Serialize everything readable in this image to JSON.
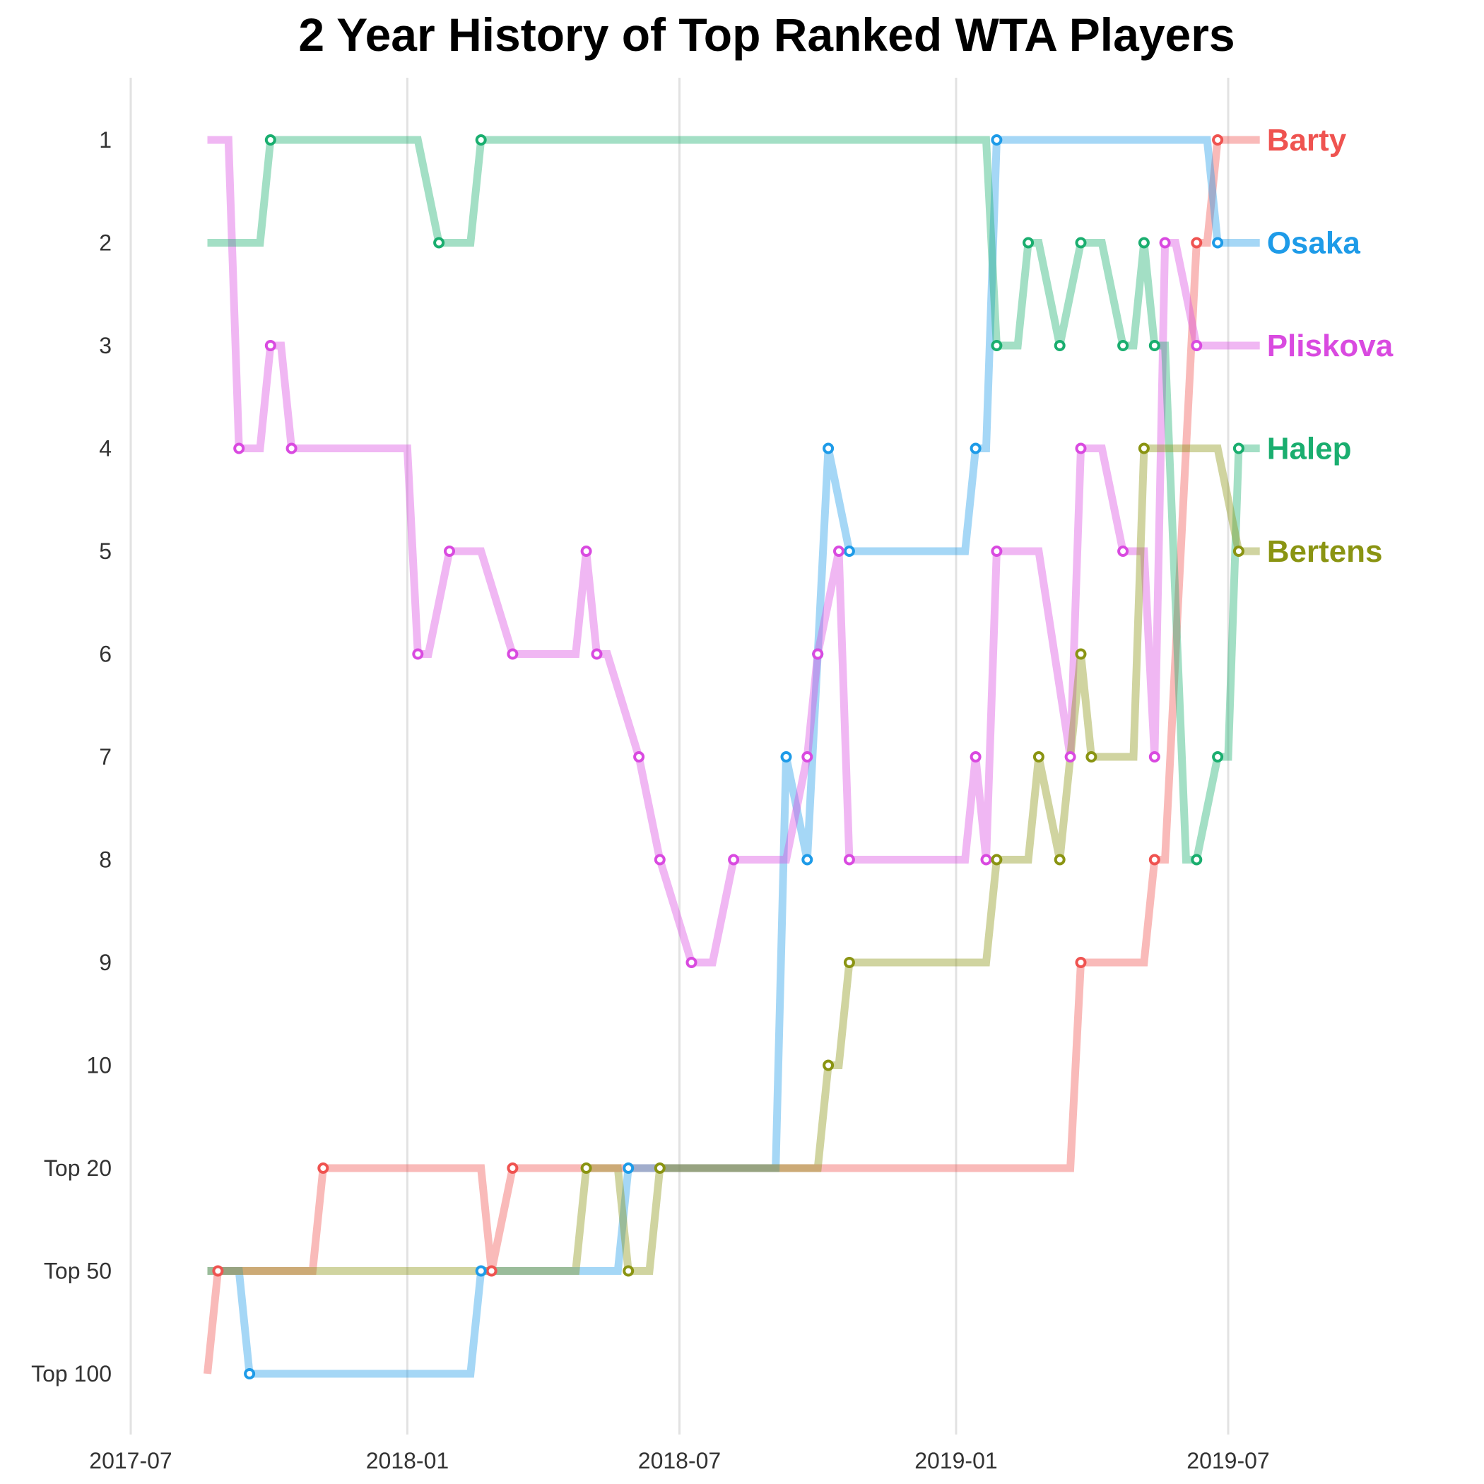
{
  "chart_data": {
    "type": "line",
    "title": "2 Year History of Top Ranked WTA Players",
    "xlabel": "",
    "ylabel": "",
    "x_tick_labels": [
      "2017-07",
      "2018-01",
      "2018-07",
      "2019-01",
      "2019-07"
    ],
    "y_tick_labels": [
      "1",
      "2",
      "3",
      "4",
      "5",
      "6",
      "7",
      "8",
      "9",
      "10",
      "Top 20",
      "Top 50",
      "Top 100"
    ],
    "grid": "vertical only",
    "legend": "right, labels at line ends",
    "series": [
      {
        "name": "Barty",
        "color": "#ef5350",
        "points": [
          [
            "2017-08-21",
            "Top 100"
          ],
          [
            "2017-08-28",
            "Top 50"
          ],
          [
            "2017-10-30",
            "Top 50"
          ],
          [
            "2017-11-06",
            "Top 20"
          ],
          [
            "2018-02-19",
            "Top 20"
          ],
          [
            "2018-02-26",
            "Top 50"
          ],
          [
            "2018-03-12",
            "Top 20"
          ],
          [
            "2019-03-18",
            "Top 20"
          ],
          [
            "2019-03-25",
            "9"
          ],
          [
            "2019-05-06",
            "9"
          ],
          [
            "2019-05-13",
            "8"
          ],
          [
            "2019-05-20",
            "8"
          ],
          [
            "2019-06-10",
            "2"
          ],
          [
            "2019-06-17",
            "2"
          ],
          [
            "2019-06-24",
            "1"
          ],
          [
            "2019-07-22",
            "1"
          ]
        ],
        "marker_dates": [
          "2017-08-28",
          "2017-11-06",
          "2018-02-26",
          "2018-03-12",
          "2019-03-25",
          "2019-05-13",
          "2019-06-10",
          "2019-06-24"
        ]
      },
      {
        "name": "Osaka",
        "color": "#1e9be8",
        "points": [
          [
            "2017-08-21",
            "Top 50"
          ],
          [
            "2017-09-11",
            "Top 50"
          ],
          [
            "2017-09-18",
            "Top 100"
          ],
          [
            "2018-02-12",
            "Top 100"
          ],
          [
            "2018-02-19",
            "Top 50"
          ],
          [
            "2018-05-21",
            "Top 50"
          ],
          [
            "2018-05-28",
            "Top 20"
          ],
          [
            "2018-09-03",
            "Top 20"
          ],
          [
            "2018-09-10",
            "7"
          ],
          [
            "2018-09-24",
            "8"
          ],
          [
            "2018-10-01",
            "6"
          ],
          [
            "2018-10-08",
            "4"
          ],
          [
            "2018-10-22",
            "5"
          ],
          [
            "2019-01-07",
            "5"
          ],
          [
            "2019-01-14",
            "4"
          ],
          [
            "2019-01-21",
            "4"
          ],
          [
            "2019-01-28",
            "1"
          ],
          [
            "2019-06-17",
            "1"
          ],
          [
            "2019-06-24",
            "2"
          ],
          [
            "2019-07-22",
            "2"
          ]
        ],
        "marker_dates": [
          "2017-09-18",
          "2018-02-19",
          "2018-05-28",
          "2018-09-10",
          "2018-09-24",
          "2018-10-01",
          "2018-10-08",
          "2018-10-22",
          "2019-01-14",
          "2019-01-28",
          "2019-06-24"
        ]
      },
      {
        "name": "Pliskova",
        "color": "#d94ae0",
        "points": [
          [
            "2017-08-21",
            "1"
          ],
          [
            "2017-09-04",
            "1"
          ],
          [
            "2017-09-11",
            "4"
          ],
          [
            "2017-09-25",
            "4"
          ],
          [
            "2017-10-02",
            "3"
          ],
          [
            "2017-10-09",
            "3"
          ],
          [
            "2017-10-16",
            "4"
          ],
          [
            "2018-01-01",
            "4"
          ],
          [
            "2018-01-08",
            "6"
          ],
          [
            "2018-01-15",
            "6"
          ],
          [
            "2018-01-29",
            "5"
          ],
          [
            "2018-02-19",
            "5"
          ],
          [
            "2018-03-12",
            "6"
          ],
          [
            "2018-04-23",
            "6"
          ],
          [
            "2018-04-30",
            "5"
          ],
          [
            "2018-05-07",
            "6"
          ],
          [
            "2018-05-14",
            "6"
          ],
          [
            "2018-06-04",
            "7"
          ],
          [
            "2018-06-18",
            "8"
          ],
          [
            "2018-07-09",
            "9"
          ],
          [
            "2018-07-23",
            "9"
          ],
          [
            "2018-08-06",
            "8"
          ],
          [
            "2018-09-10",
            "8"
          ],
          [
            "2018-09-24",
            "7"
          ],
          [
            "2018-10-01",
            "6"
          ],
          [
            "2018-10-15",
            "5"
          ],
          [
            "2018-10-22",
            "8"
          ],
          [
            "2019-01-07",
            "8"
          ],
          [
            "2019-01-14",
            "7"
          ],
          [
            "2019-01-21",
            "8"
          ],
          [
            "2019-01-28",
            "5"
          ],
          [
            "2019-02-25",
            "5"
          ],
          [
            "2019-03-18",
            "7"
          ],
          [
            "2019-03-25",
            "4"
          ],
          [
            "2019-04-08",
            "4"
          ],
          [
            "2019-04-22",
            "5"
          ],
          [
            "2019-05-06",
            "5"
          ],
          [
            "2019-05-13",
            "7"
          ],
          [
            "2019-05-20",
            "2"
          ],
          [
            "2019-05-27",
            "2"
          ],
          [
            "2019-06-10",
            "3"
          ],
          [
            "2019-07-22",
            "3"
          ]
        ],
        "marker_dates": [
          "2017-09-11",
          "2017-10-02",
          "2017-10-16",
          "2018-01-08",
          "2018-01-29",
          "2018-03-12",
          "2018-04-30",
          "2018-05-07",
          "2018-06-04",
          "2018-06-18",
          "2018-07-09",
          "2018-08-06",
          "2018-09-24",
          "2018-10-01",
          "2018-10-15",
          "2018-10-22",
          "2019-01-14",
          "2019-01-21",
          "2019-01-28",
          "2019-03-18",
          "2019-03-25",
          "2019-04-22",
          "2019-05-13",
          "2019-05-20",
          "2019-06-10"
        ]
      },
      {
        "name": "Halep",
        "color": "#1aae6f",
        "points": [
          [
            "2017-08-21",
            "2"
          ],
          [
            "2017-09-25",
            "2"
          ],
          [
            "2017-10-02",
            "1"
          ],
          [
            "2018-01-08",
            "1"
          ],
          [
            "2018-01-22",
            "2"
          ],
          [
            "2018-01-29",
            "2"
          ],
          [
            "2018-02-12",
            "2"
          ],
          [
            "2018-02-19",
            "1"
          ],
          [
            "2019-01-21",
            "1"
          ],
          [
            "2019-01-28",
            "3"
          ],
          [
            "2019-02-11",
            "3"
          ],
          [
            "2019-02-18",
            "2"
          ],
          [
            "2019-02-25",
            "2"
          ],
          [
            "2019-03-11",
            "3"
          ],
          [
            "2019-03-25",
            "2"
          ],
          [
            "2019-04-08",
            "2"
          ],
          [
            "2019-04-22",
            "3"
          ],
          [
            "2019-04-29",
            "3"
          ],
          [
            "2019-05-06",
            "2"
          ],
          [
            "2019-05-13",
            "3"
          ],
          [
            "2019-05-20",
            "3"
          ],
          [
            "2019-06-03",
            "8"
          ],
          [
            "2019-06-10",
            "8"
          ],
          [
            "2019-06-24",
            "7"
          ],
          [
            "2019-07-01",
            "7"
          ],
          [
            "2019-07-08",
            "4"
          ],
          [
            "2019-07-22",
            "4"
          ]
        ],
        "marker_dates": [
          "2017-10-02",
          "2018-01-22",
          "2018-02-19",
          "2019-01-28",
          "2019-02-18",
          "2019-03-11",
          "2019-03-25",
          "2019-04-22",
          "2019-05-06",
          "2019-05-13",
          "2019-06-10",
          "2019-06-24",
          "2019-07-08"
        ]
      },
      {
        "name": "Bertens",
        "color": "#8a9412",
        "points": [
          [
            "2017-08-21",
            "Top 50"
          ],
          [
            "2018-04-23",
            "Top 50"
          ],
          [
            "2018-04-30",
            "Top 20"
          ],
          [
            "2018-05-21",
            "Top 20"
          ],
          [
            "2018-05-28",
            "Top 50"
          ],
          [
            "2018-06-11",
            "Top 50"
          ],
          [
            "2018-06-18",
            "Top 20"
          ],
          [
            "2018-10-01",
            "Top 20"
          ],
          [
            "2018-10-08",
            "10"
          ],
          [
            "2018-10-15",
            "10"
          ],
          [
            "2018-10-22",
            "9"
          ],
          [
            "2019-01-21",
            "9"
          ],
          [
            "2019-01-28",
            "8"
          ],
          [
            "2019-02-18",
            "8"
          ],
          [
            "2019-02-25",
            "7"
          ],
          [
            "2019-03-11",
            "8"
          ],
          [
            "2019-03-25",
            "6"
          ],
          [
            "2019-04-01",
            "7"
          ],
          [
            "2019-04-29",
            "7"
          ],
          [
            "2019-05-06",
            "4"
          ],
          [
            "2019-06-24",
            "4"
          ],
          [
            "2019-07-08",
            "5"
          ],
          [
            "2019-07-22",
            "5"
          ]
        ],
        "marker_dates": [
          "2018-04-30",
          "2018-05-28",
          "2018-06-18",
          "2018-10-08",
          "2018-10-22",
          "2019-01-28",
          "2019-02-25",
          "2019-03-11",
          "2019-03-25",
          "2019-04-01",
          "2019-05-06",
          "2019-07-08"
        ]
      }
    ]
  }
}
